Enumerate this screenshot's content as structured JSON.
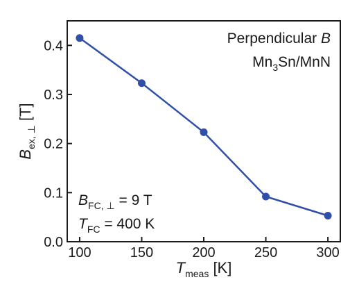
{
  "chart_data": {
    "type": "line",
    "x": [
      100,
      150,
      200,
      250,
      300
    ],
    "series": [
      {
        "values": [
          0.415,
          0.323,
          0.223,
          0.092,
          0.053
        ],
        "color": "#2f4fa8"
      }
    ],
    "xlim": [
      90,
      310
    ],
    "ylim": [
      0.0,
      0.45
    ],
    "xticks": [
      100,
      150,
      200,
      250,
      300
    ],
    "yticks": [
      0.0,
      0.1,
      0.2,
      0.3,
      0.4
    ],
    "xtick_labels": [
      "100",
      "150",
      "200",
      "250",
      "300"
    ],
    "ytick_labels": [
      "0.0",
      "0.1",
      "0.2",
      "0.3",
      "0.4"
    ],
    "xlabel": {
      "main": "T",
      "sub": "meas",
      "unit": " [K]"
    },
    "ylabel": {
      "main": "B",
      "sub": "ex, ⊥",
      "unit": " [T]"
    },
    "annotations": {
      "top_line1_text": "Perpendicular ",
      "top_line1_var": "B",
      "top_line2_a": "Mn",
      "top_line2_sub": "3",
      "top_line2_b": "Sn/MnN",
      "bottom_line1_main": "B",
      "bottom_line1_sub": "FC, ⊥",
      "bottom_line1_rest": " = 9 T",
      "bottom_line2_main": "T",
      "bottom_line2_sub": "FC",
      "bottom_line2_rest": " = 400 K"
    },
    "grid": false,
    "legend": "none"
  }
}
